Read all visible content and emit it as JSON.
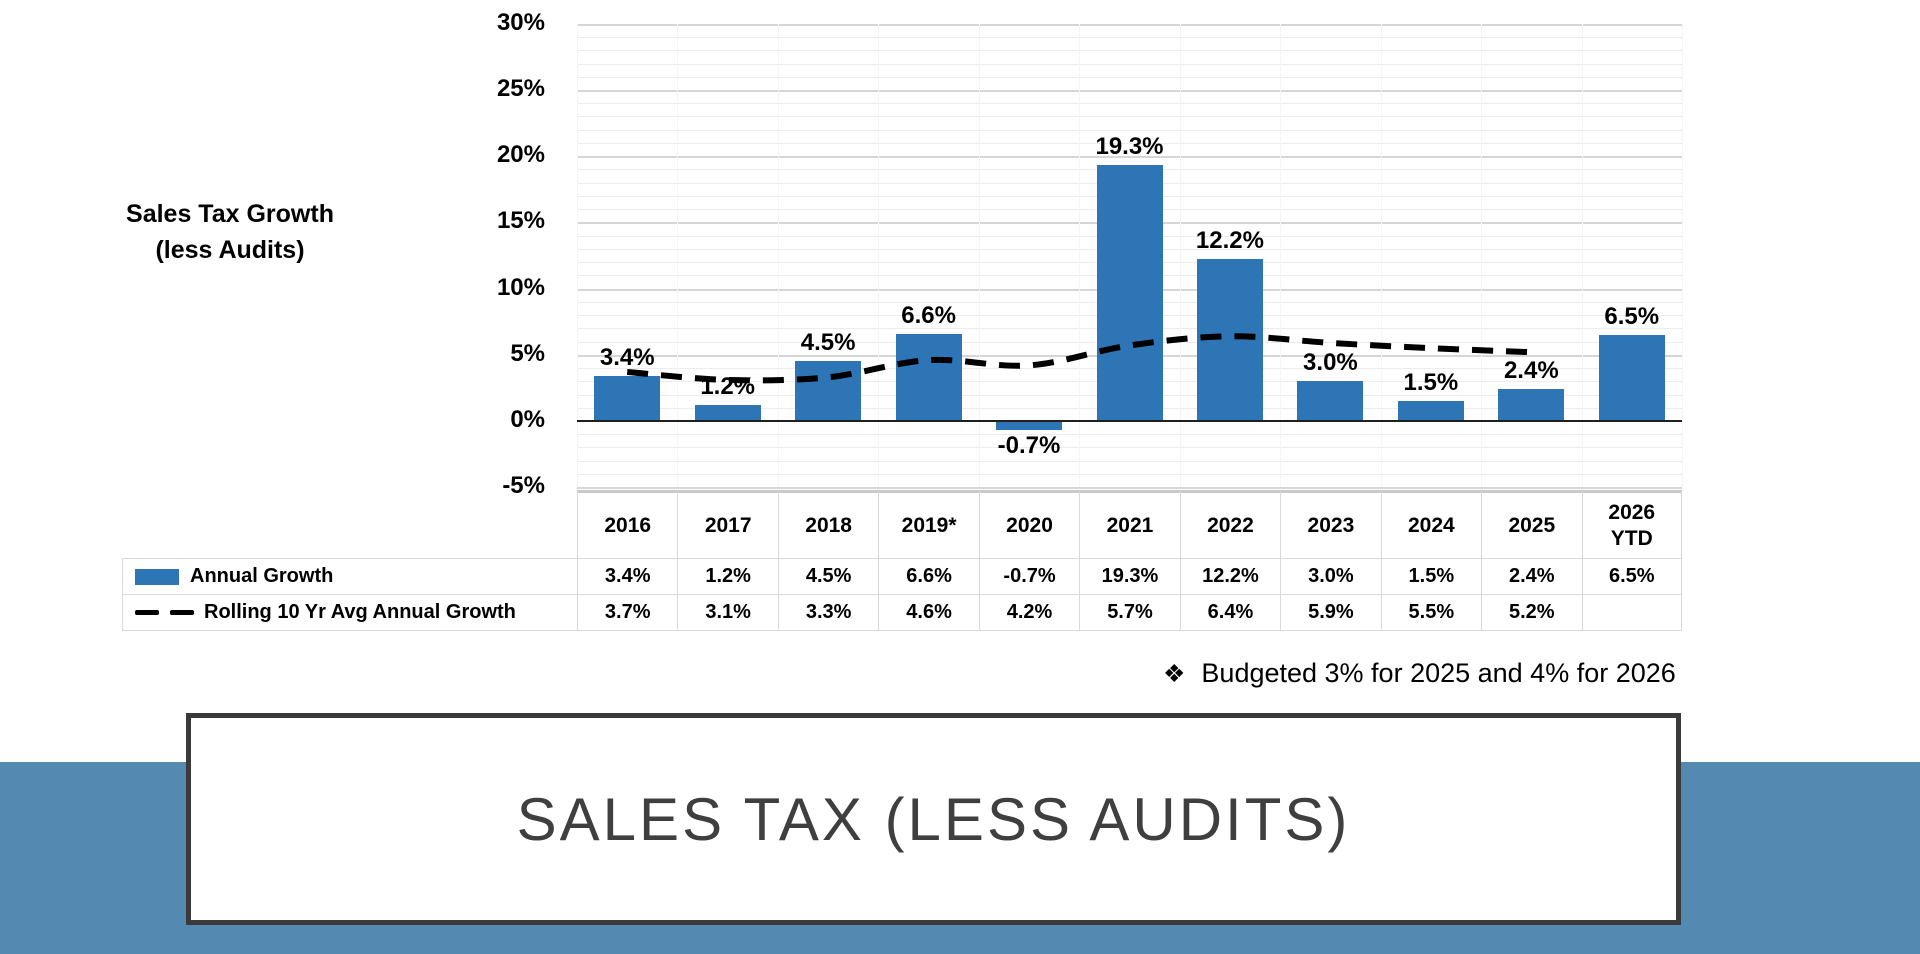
{
  "chart_data": {
    "type": "bar",
    "title": "",
    "axis_title": "Sales Tax Growth (less Audits)",
    "axis_title_lines": [
      "Sales Tax Growth",
      "(less Audits)"
    ],
    "categories": [
      "2016",
      "2017",
      "2018",
      "2019*",
      "2020",
      "2021",
      "2022",
      "2023",
      "2024",
      "2025",
      "2026 YTD"
    ],
    "categories_display": [
      "2016",
      "2017",
      "2018",
      "2019*",
      "2020",
      "2021",
      "2022",
      "2023",
      "2024",
      "2025",
      "2026\nYTD"
    ],
    "series": [
      {
        "name": "Annual Growth",
        "type": "bar",
        "color": "#2E75B6",
        "values": [
          3.4,
          1.2,
          4.5,
          6.6,
          -0.7,
          19.3,
          12.2,
          3.0,
          1.5,
          2.4,
          6.5
        ],
        "labels": [
          "3.4%",
          "1.2%",
          "4.5%",
          "6.6%",
          "-0.7%",
          "19.3%",
          "12.2%",
          "3.0%",
          "1.5%",
          "2.4%",
          "6.5%"
        ]
      },
      {
        "name": "Rolling 10 Yr Avg Annual Growth",
        "type": "line",
        "line_style": "dashed",
        "color": "#000000",
        "values": [
          3.7,
          3.1,
          3.3,
          4.6,
          4.2,
          5.7,
          6.4,
          5.9,
          5.5,
          5.2,
          null
        ],
        "labels": [
          "3.7%",
          "3.1%",
          "3.3%",
          "4.6%",
          "4.2%",
          "5.7%",
          "6.4%",
          "5.9%",
          "5.5%",
          "5.2%",
          ""
        ]
      }
    ],
    "y_tick_labels": [
      "30%",
      "25%",
      "20%",
      "15%",
      "10%",
      "5%",
      "0%",
      "-5%"
    ],
    "y_tick_values": [
      30,
      25,
      20,
      15,
      10,
      5,
      0,
      -5
    ],
    "ylim": [
      -5,
      30
    ],
    "y_major_unit": 5,
    "y_minor_unit": 1,
    "grid": true,
    "data_table_shown": true,
    "legend_position": "data-table-left"
  },
  "note": {
    "bullet": "❖",
    "text": "Budgeted 3% for 2025 and 4% for 2026"
  },
  "footer": {
    "title": "SALES TAX (LESS AUDITS)"
  },
  "colors": {
    "bar_blue": "#2E75B6",
    "band_blue": "#5489B2",
    "line_black": "#000000",
    "grid_major": "#D6D6D6",
    "grid_minor": "#ECECEC",
    "axis_line": "#1F1F1F",
    "table_border": "#D9D9D9",
    "table_border_heavy": "#C9C9C9",
    "title_gray": "#3F3F3F"
  }
}
